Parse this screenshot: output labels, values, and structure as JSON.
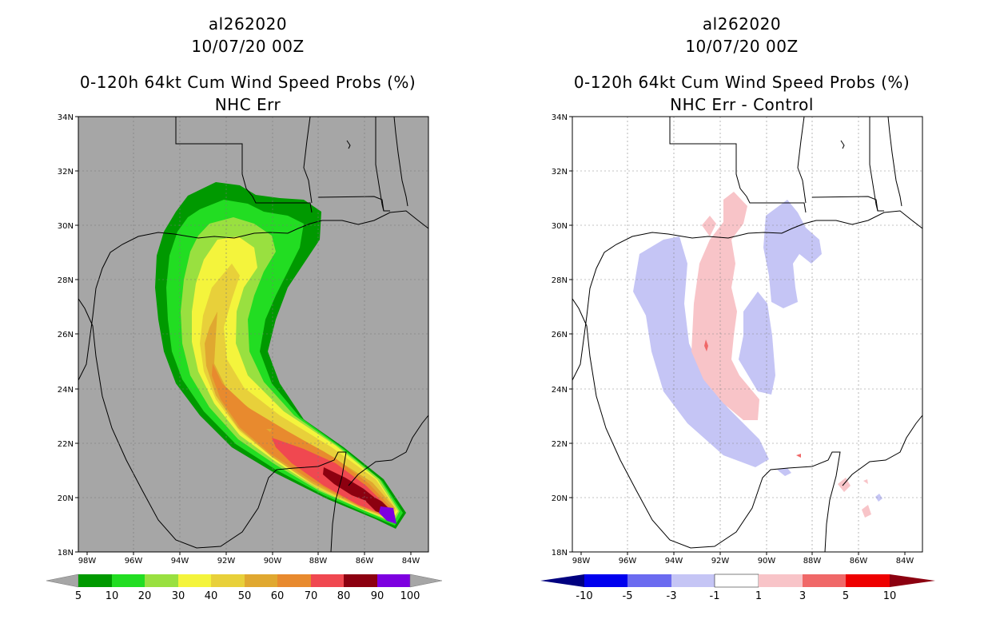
{
  "left_panel": {
    "title_line1": "al262020",
    "title_line2": "10/07/20 00Z",
    "title_line3": "0-120h 64kt Cum Wind Speed Probs (%)",
    "title_line4": "NHC Err",
    "colorbar_labels": [
      "5",
      "10",
      "20",
      "30",
      "40",
      "50",
      "60",
      "70",
      "80",
      "90",
      "100"
    ],
    "colors": [
      "#009900",
      "#22dd22",
      "#99e040",
      "#f4f43c",
      "#e8d03a",
      "#e0a830",
      "#e88a2e",
      "#f04850",
      "#8c0010",
      "#7d00e0"
    ],
    "background": "#a6a6a6"
  },
  "right_panel": {
    "title_line1": "al262020",
    "title_line2": "10/07/20 00Z",
    "title_line3": "0-120h 64kt Cum Wind Speed Probs (%)",
    "title_line4": "NHC Err - Control",
    "colorbar_labels": [
      "-10",
      "-5",
      "-3",
      "-1",
      "1",
      "3",
      "5",
      "10"
    ],
    "colors": [
      "#000080",
      "#0000ee",
      "#6b6bf0",
      "#c5c5f5",
      "#ffffff",
      "#f8c4c8",
      "#f06868",
      "#ee0000",
      "#8c0010"
    ]
  },
  "axes": {
    "lat_labels": [
      "34N",
      "32N",
      "30N",
      "28N",
      "26N",
      "24N",
      "22N",
      "20N",
      "18N"
    ],
    "lon_labels": [
      "98W",
      "96W",
      "94W",
      "92W",
      "90W",
      "88W",
      "86W",
      "84W"
    ]
  }
}
